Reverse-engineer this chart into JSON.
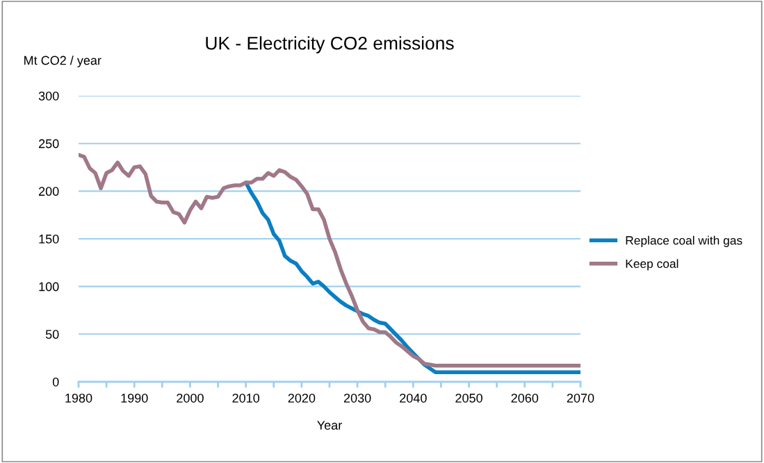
{
  "chart_data": {
    "type": "line",
    "title": "UK - Electricity CO2 emissions",
    "xlabel": "Year",
    "ylabel": "Mt CO2 / year",
    "xlim": [
      1980,
      2070
    ],
    "ylim": [
      0,
      300
    ],
    "yticks": [
      0,
      50,
      100,
      150,
      200,
      250,
      300
    ],
    "xticks": [
      1980,
      {
        "value": 1985,
        "label": null
      },
      1990,
      {
        "value": 1995,
        "label": null
      },
      2000,
      {
        "value": 2005,
        "label": null
      },
      2010,
      {
        "value": 2015,
        "label": null
      },
      2020,
      {
        "value": 2025,
        "label": null
      },
      2030,
      {
        "value": 2035,
        "label": null
      },
      2040,
      {
        "value": 2045,
        "label": null
      },
      2050,
      {
        "value": 2055,
        "label": null
      },
      2060,
      {
        "value": 2065,
        "label": null
      },
      2070
    ],
    "grid": "y",
    "legend": "right",
    "marker": "none",
    "line_style": "solid",
    "series": [
      {
        "name": "Replace coal with gas",
        "color": "#0a7fc2",
        "x": [
          2010,
          2011,
          2012,
          2013,
          2014,
          2015,
          2016,
          2017,
          2018,
          2019,
          2020,
          2021,
          2022,
          2023,
          2024,
          2025,
          2026,
          2027,
          2028,
          2029,
          2030,
          2031,
          2032,
          2033,
          2034,
          2035,
          2036,
          2037,
          2038,
          2039,
          2040,
          2041,
          2042,
          2043,
          2044,
          2070
        ],
        "values": [
          209,
          198,
          189,
          177,
          170,
          155,
          148,
          132,
          127,
          124,
          116,
          110,
          103,
          105,
          100,
          94,
          89,
          84,
          80,
          77,
          74,
          71,
          69,
          65,
          62,
          61,
          55,
          49,
          43,
          36,
          30,
          24,
          18,
          14,
          10,
          10
        ]
      },
      {
        "name": "Keep coal",
        "color": "#a07888",
        "x": [
          1980,
          1981,
          1982,
          1983,
          1984,
          1985,
          1986,
          1987,
          1988,
          1989,
          1990,
          1991,
          1992,
          1993,
          1994,
          1995,
          1996,
          1997,
          1998,
          1999,
          2000,
          2001,
          2002,
          2003,
          2004,
          2005,
          2006,
          2007,
          2008,
          2009,
          2010,
          2011,
          2012,
          2013,
          2014,
          2015,
          2016,
          2017,
          2018,
          2019,
          2020,
          2021,
          2022,
          2023,
          2024,
          2025,
          2026,
          2027,
          2028,
          2029,
          2030,
          2031,
          2032,
          2033,
          2034,
          2035,
          2036,
          2037,
          2038,
          2039,
          2040,
          2041,
          2042,
          2043,
          2044,
          2070
        ],
        "values": [
          238,
          236,
          224,
          219,
          203,
          219,
          222,
          230,
          221,
          216,
          225,
          226,
          218,
          195,
          189,
          188,
          188,
          178,
          176,
          167,
          180,
          189,
          182,
          194,
          193,
          194,
          203,
          205,
          206,
          206,
          209,
          209,
          213,
          213,
          219,
          216,
          222,
          220,
          215,
          212,
          205,
          197,
          181,
          181,
          170,
          150,
          136,
          118,
          103,
          90,
          75,
          63,
          56,
          55,
          52,
          52,
          47,
          41,
          37,
          32,
          27,
          24,
          19,
          18,
          17,
          17
        ]
      }
    ]
  }
}
